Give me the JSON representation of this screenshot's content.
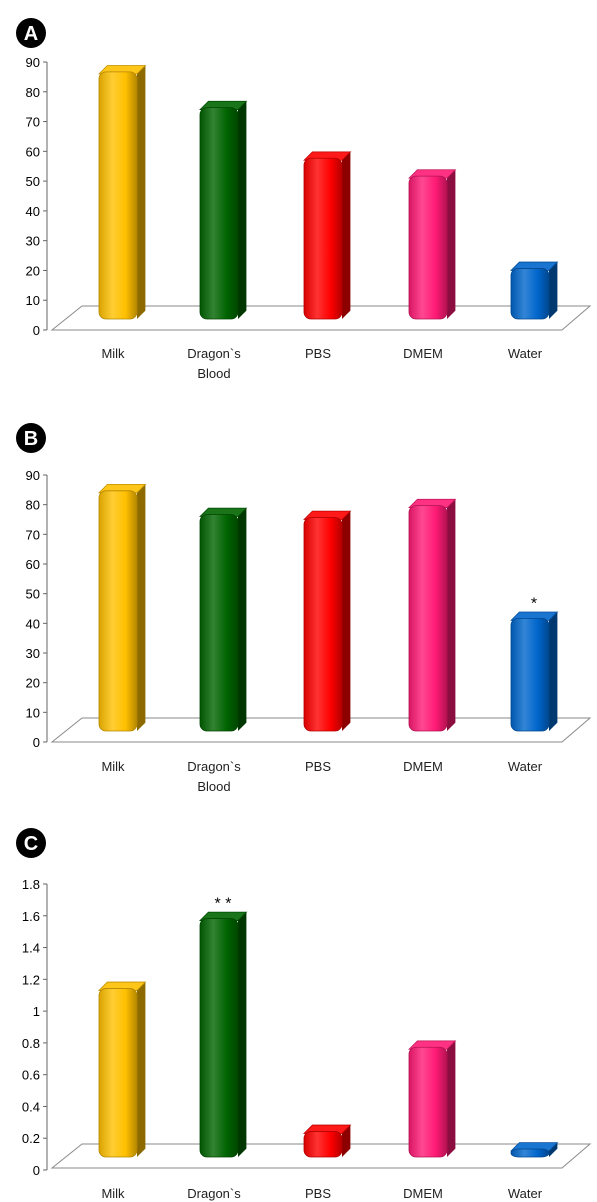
{
  "chart_data": [
    {
      "panel": "A",
      "type": "bar",
      "categories": [
        "Milk",
        "Dragon`s Blood",
        "PBS",
        "DMEM",
        "Water"
      ],
      "values": [
        86,
        74,
        57,
        51,
        20
      ],
      "ylim": [
        0,
        90
      ],
      "yticks": [
        "0",
        "10",
        "20",
        "30",
        "40",
        "50",
        "60",
        "70",
        "80",
        "90"
      ],
      "colors": [
        "#ffc000",
        "#006400",
        "#ff0000",
        "#ff1a75",
        "#0066cc"
      ],
      "annotations": [
        "",
        "",
        "",
        "",
        ""
      ],
      "style": "3d-cylinder",
      "legend": "none",
      "grid": false
    },
    {
      "panel": "B",
      "type": "bar",
      "categories": [
        "Milk",
        "Dragon`s Blood",
        "PBS",
        "DMEM",
        "Water"
      ],
      "values": [
        84,
        76,
        75,
        79,
        41
      ],
      "ylim": [
        0,
        90
      ],
      "yticks": [
        "0",
        "10",
        "20",
        "30",
        "40",
        "50",
        "60",
        "70",
        "80",
        "90"
      ],
      "colors": [
        "#ffc000",
        "#006400",
        "#ff0000",
        "#ff1a75",
        "#0066cc"
      ],
      "annotations": [
        "",
        "",
        "",
        "",
        "*"
      ],
      "style": "3d-cylinder",
      "legend": "none",
      "grid": false
    },
    {
      "panel": "C",
      "type": "bar",
      "categories": [
        "Milk",
        "Dragon`s Blood",
        "PBS",
        "DMEM",
        "Water"
      ],
      "values": [
        1.13,
        1.57,
        0.23,
        0.76,
        0.01
      ],
      "ylim": [
        0,
        1.8
      ],
      "yticks": [
        "0",
        "0.2",
        "0.4",
        "0.6",
        "0.8",
        "1",
        "1.2",
        "1.4",
        "1.6",
        "1.8"
      ],
      "colors": [
        "#ffc000",
        "#006400",
        "#ff0000",
        "#ff1a75",
        "#0066cc"
      ],
      "annotations": [
        "",
        "* *",
        "",
        "",
        ""
      ],
      "style": "3d-cylinder",
      "legend": "none",
      "grid": false
    }
  ]
}
